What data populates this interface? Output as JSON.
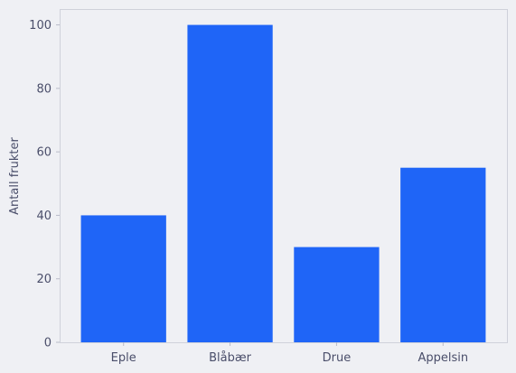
{
  "chart_data": {
    "type": "bar",
    "title": "",
    "xlabel": "",
    "ylabel": "Antall frukter",
    "categories": [
      "Eple",
      "Blåbær",
      "Drue",
      "Appelsin"
    ],
    "values": [
      40,
      100,
      30,
      55
    ],
    "ylim": [
      0,
      105
    ],
    "yticks": [
      0,
      20,
      40,
      60,
      80,
      100
    ],
    "grid": false,
    "legend": "none",
    "colors": {
      "bar": "#1f65f7",
      "background": "#eff0f4",
      "frame": "#cfd1da",
      "text": "#4a4e6a"
    }
  }
}
